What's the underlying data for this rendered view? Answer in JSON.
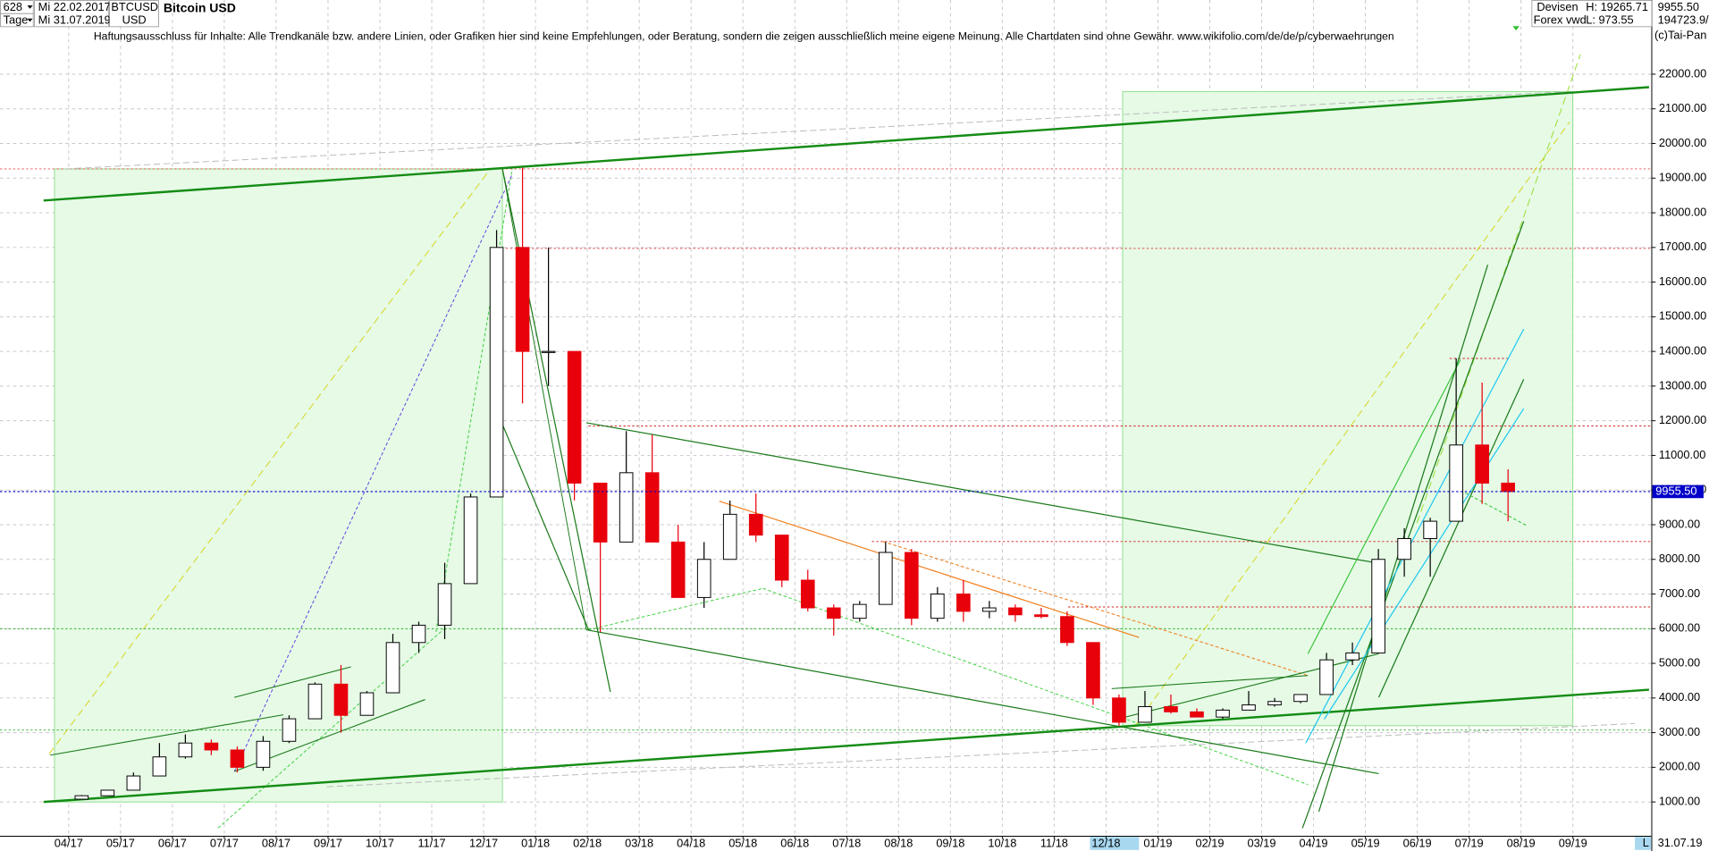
{
  "header": {
    "count": "628",
    "start_date": "Mi 22.02.2017",
    "period": "Tage",
    "end_date": "Mi 31.07.2019",
    "symbol": "BTCUSD",
    "currency": "USD",
    "market": "Devisen",
    "source": "Forex vwd",
    "high": "H: 19265.71",
    "low": "L: 973.55",
    "last": "9955.50",
    "volume": "194723.9/",
    "copyright": "(c)Tai-Pan",
    "disclaimer": "Haftungsausschluss für Inhalte: Alle Trendkanäle bzw. andere Linien, oder Grafiken hier sind keine Empfehlungen, oder Beratung, sondern die zeigen ausschließlich meine eigene Meinung. Alle Chartdaten sind ohne Gewähr.  www.wikifolio.com/de/de/p/cyberwaehrungen",
    "date_label": "31.07.19",
    "scale_mode": "L"
  },
  "chart_data": {
    "type": "candlestick",
    "title": "Bitcoin USD",
    "categories": [
      "04/17",
      null,
      "05/17",
      null,
      "06/17",
      null,
      "07/17",
      null,
      "08/17",
      null,
      "09/17",
      null,
      "10/17",
      null,
      "11/17",
      null,
      "12/17",
      null,
      "01/18",
      null,
      "02/18",
      null,
      "03/18",
      null,
      "04/18",
      null,
      "05/18",
      null,
      "06/18",
      null,
      "07/18",
      null,
      "08/18",
      null,
      "09/18",
      null,
      "10/18",
      null,
      "11/18",
      null,
      "12/18",
      null,
      "01/19",
      null,
      "02/19",
      null,
      "03/19",
      null,
      "04/19",
      null,
      "05/19",
      null,
      "06/19",
      null,
      "07/19",
      null,
      "08/19",
      null,
      "09/19",
      null
    ],
    "open": [
      1080,
      1180,
      1340,
      1750,
      2300,
      2700,
      2500,
      2000,
      2750,
      3400,
      4400,
      3500,
      4150,
      5600,
      6100,
      7300,
      9800,
      17000,
      14000,
      14000,
      10200,
      8500,
      10500,
      8500,
      6900,
      8000,
      9300,
      8700,
      7400,
      6600,
      6300,
      6700,
      8200,
      6300,
      7000,
      6500,
      6600,
      6400,
      6350,
      5600,
      4000,
      3300,
      3750,
      3600,
      3450,
      3650,
      3800,
      3900,
      4100,
      5100,
      5300,
      8000,
      8600,
      9100,
      11300,
      10200,
      null,
      null,
      null,
      null
    ],
    "high": [
      1200,
      1350,
      1850,
      2700,
      2950,
      2800,
      2600,
      2900,
      3500,
      4450,
      4950,
      4200,
      5850,
      6200,
      7900,
      9900,
      17500,
      19300,
      17000,
      14000,
      10200,
      11700,
      11600,
      9000,
      8500,
      9700,
      9900,
      8700,
      7700,
      6700,
      6800,
      8500,
      8300,
      7200,
      7400,
      6800,
      6700,
      6600,
      6500,
      5600,
      4100,
      4200,
      4100,
      3700,
      3700,
      4200,
      4000,
      4100,
      5300,
      5600,
      8300,
      8900,
      9200,
      13800,
      13100,
      10600,
      null,
      null,
      null,
      null
    ],
    "low": [
      1080,
      1170,
      1340,
      1750,
      2250,
      2350,
      1850,
      1900,
      2700,
      3400,
      3000,
      3500,
      4150,
      5300,
      5700,
      7300,
      9800,
      12500,
      13000,
      9700,
      5900,
      8500,
      8500,
      6900,
      6600,
      8000,
      8500,
      7200,
      6500,
      5800,
      6200,
      6700,
      6100,
      6200,
      6200,
      6300,
      6200,
      6300,
      5500,
      3800,
      3200,
      3300,
      3550,
      3450,
      3400,
      3650,
      3750,
      3850,
      4100,
      4950,
      5300,
      7500,
      7500,
      9100,
      9600,
      9100,
      null,
      null,
      null,
      null
    ],
    "close": [
      1180,
      1340,
      1750,
      2300,
      2700,
      2500,
      2000,
      2750,
      3400,
      4400,
      3500,
      4150,
      5600,
      6100,
      7300,
      9800,
      17000,
      14000,
      14000,
      10200,
      8500,
      10500,
      8500,
      6900,
      8000,
      9300,
      8700,
      7400,
      6600,
      6300,
      6700,
      8200,
      6300,
      7000,
      6500,
      6600,
      6400,
      6350,
      5600,
      4000,
      3300,
      3750,
      3600,
      3450,
      3650,
      3800,
      3900,
      4100,
      5100,
      5300,
      8000,
      8600,
      9100,
      11300,
      10200,
      9955.5,
      null,
      null,
      null,
      null
    ],
    "up_color": "#ffffff",
    "down_color": "#e8000b",
    "ylim": [
      25,
      24140
    ],
    "yticks": [
      {
        "value": 1000,
        "label": "1000.00"
      },
      {
        "value": 2000,
        "label": "2000.00"
      },
      {
        "value": 3000,
        "label": "3000.00"
      },
      {
        "value": 4000,
        "label": "4000.00"
      },
      {
        "value": 5000,
        "label": "5000.00"
      },
      {
        "value": 6000,
        "label": "6000.00"
      },
      {
        "value": 7000,
        "label": "7000.00"
      },
      {
        "value": 8000,
        "label": "8000.00"
      },
      {
        "value": 9000,
        "label": "9000.00"
      },
      {
        "value": 10000,
        "label": "10000.00"
      },
      {
        "value": 11000,
        "label": "11000.00"
      },
      {
        "value": 12000,
        "label": "12000.00"
      },
      {
        "value": 13000,
        "label": "13000.00"
      },
      {
        "value": 14000,
        "label": "14000.00"
      },
      {
        "value": 15000,
        "label": "15000.00"
      },
      {
        "value": 16000,
        "label": "16000.00"
      },
      {
        "value": 17000,
        "label": "17000.00"
      },
      {
        "value": 18000,
        "label": "18000.00"
      },
      {
        "value": 19000,
        "label": "19000.00"
      },
      {
        "value": 20000,
        "label": "20000.00"
      },
      {
        "value": 21000,
        "label": "21000.00"
      },
      {
        "value": 22000,
        "label": "22000.00"
      }
    ],
    "grid": true,
    "last_price": 9955.5,
    "last_price_label": "9955.50",
    "last_price_color": "#0000c8"
  }
}
